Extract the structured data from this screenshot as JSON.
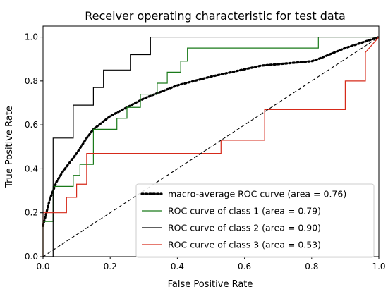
{
  "chart_data": {
    "type": "line",
    "title": "Receiver operating characteristic for test data",
    "xlabel": "False Positive Rate",
    "ylabel": "True Positive Rate",
    "xlim": [
      0.0,
      1.0
    ],
    "ylim": [
      0.0,
      1.05
    ],
    "xticks": [
      "0.0",
      "0.2",
      "0.4",
      "0.6",
      "0.8",
      "1.0"
    ],
    "yticks": [
      "0.0",
      "0.2",
      "0.4",
      "0.6",
      "0.8",
      "1.0"
    ],
    "legend_position": "lower-right",
    "grid": false,
    "series": [
      {
        "name": "macro-average ROC curve (area = 0.76)",
        "color": "#000000",
        "style": "dotted",
        "x": [
          0.0,
          0.02,
          0.04,
          0.06,
          0.08,
          0.1,
          0.13,
          0.15,
          0.2,
          0.25,
          0.3,
          0.4,
          0.5,
          0.65,
          0.8,
          0.82,
          0.9,
          1.0
        ],
        "y": [
          0.14,
          0.26,
          0.34,
          0.39,
          0.43,
          0.47,
          0.54,
          0.58,
          0.64,
          0.68,
          0.72,
          0.78,
          0.82,
          0.87,
          0.89,
          0.9,
          0.95,
          1.0
        ]
      },
      {
        "name": "ROC curve of class 1 (area = 0.79)",
        "color": "#1a7a1a",
        "style": "solid",
        "x": [
          0.0,
          0.0,
          0.03,
          0.03,
          0.09,
          0.09,
          0.11,
          0.11,
          0.15,
          0.15,
          0.22,
          0.22,
          0.25,
          0.25,
          0.29,
          0.29,
          0.34,
          0.34,
          0.37,
          0.37,
          0.41,
          0.41,
          0.43,
          0.43,
          0.47,
          0.47,
          0.82,
          0.82,
          1.0
        ],
        "y": [
          0.0,
          0.16,
          0.16,
          0.32,
          0.32,
          0.37,
          0.37,
          0.42,
          0.42,
          0.58,
          0.58,
          0.63,
          0.63,
          0.68,
          0.68,
          0.74,
          0.74,
          0.79,
          0.79,
          0.84,
          0.84,
          0.89,
          0.89,
          0.95,
          0.95,
          0.95,
          0.95,
          1.0,
          1.0
        ]
      },
      {
        "name": "ROC curve of class 2 (area = 0.90)",
        "color": "#000000",
        "style": "solid",
        "x": [
          0.0,
          0.03,
          0.03,
          0.09,
          0.09,
          0.15,
          0.15,
          0.18,
          0.18,
          0.26,
          0.26,
          0.32,
          0.32,
          1.0
        ],
        "y": [
          0.0,
          0.0,
          0.54,
          0.54,
          0.69,
          0.69,
          0.77,
          0.77,
          0.85,
          0.85,
          0.92,
          0.92,
          1.0,
          1.0
        ]
      },
      {
        "name": "ROC curve of class 3 (area = 0.53)",
        "color": "#d62a1a",
        "style": "solid",
        "x": [
          0.0,
          0.0,
          0.07,
          0.07,
          0.1,
          0.1,
          0.13,
          0.13,
          0.19,
          0.19,
          0.53,
          0.53,
          0.66,
          0.66,
          0.9,
          0.9,
          0.96,
          0.96,
          1.0
        ],
        "y": [
          0.0,
          0.2,
          0.2,
          0.27,
          0.27,
          0.33,
          0.33,
          0.47,
          0.47,
          0.47,
          0.47,
          0.53,
          0.53,
          0.67,
          0.67,
          0.8,
          0.8,
          0.93,
          1.0
        ]
      },
      {
        "name": "",
        "color": "#000000",
        "style": "dashed",
        "x": [
          0.0,
          1.0
        ],
        "y": [
          0.0,
          1.0
        ]
      }
    ]
  }
}
